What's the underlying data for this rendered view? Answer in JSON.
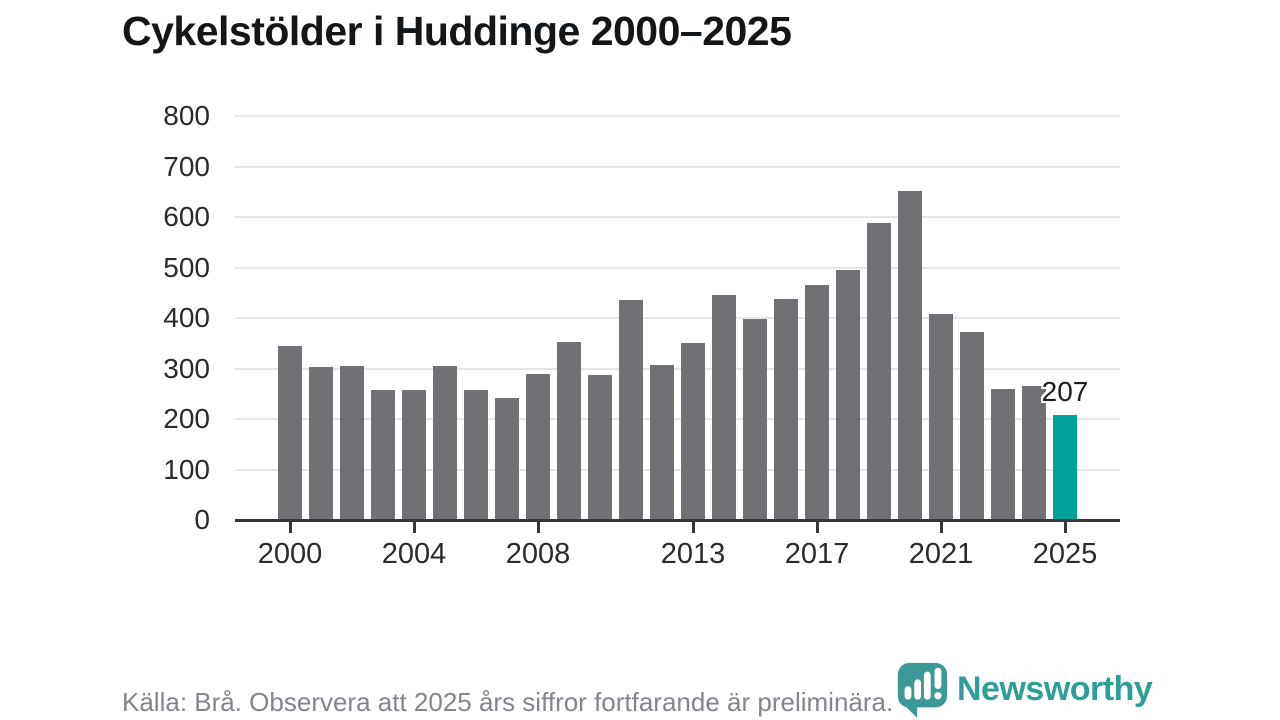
{
  "title": "Cykelstölder i Huddinge 2000–2025",
  "footer": {
    "source_text": "Källa: Brå. Observera att 2025 års siffror fortfarande är preliminära."
  },
  "logo": {
    "text": "Newsworthy",
    "color": "#2e9e98"
  },
  "chart_data": {
    "type": "bar",
    "title": "Cykelstölder i Huddinge 2000–2025",
    "categories": [
      2000,
      2001,
      2002,
      2003,
      2004,
      2005,
      2006,
      2007,
      2008,
      2009,
      2010,
      2011,
      2012,
      2013,
      2014,
      2015,
      2016,
      2017,
      2018,
      2019,
      2020,
      2021,
      2022,
      2023,
      2024,
      2025
    ],
    "values": [
      345,
      302,
      304,
      257,
      257,
      305,
      257,
      242,
      290,
      353,
      287,
      436,
      306,
      350,
      445,
      398,
      438,
      466,
      496,
      588,
      651,
      408,
      373,
      260,
      265,
      207
    ],
    "highlight_index": 25,
    "annotation": {
      "index": 25,
      "text": "207"
    },
    "yticks": [
      0,
      100,
      200,
      300,
      400,
      500,
      600,
      700,
      800
    ],
    "xticks": [
      2000,
      2004,
      2008,
      2013,
      2017,
      2021,
      2025
    ],
    "ylim": [
      0,
      800
    ],
    "xlabel": "",
    "ylabel": "",
    "grid": true,
    "legend": "none",
    "bar_color": "#717074",
    "highlight_color": "#00a29b",
    "gridline_color": "#e6e6e8",
    "axis_color": "#38383b"
  }
}
